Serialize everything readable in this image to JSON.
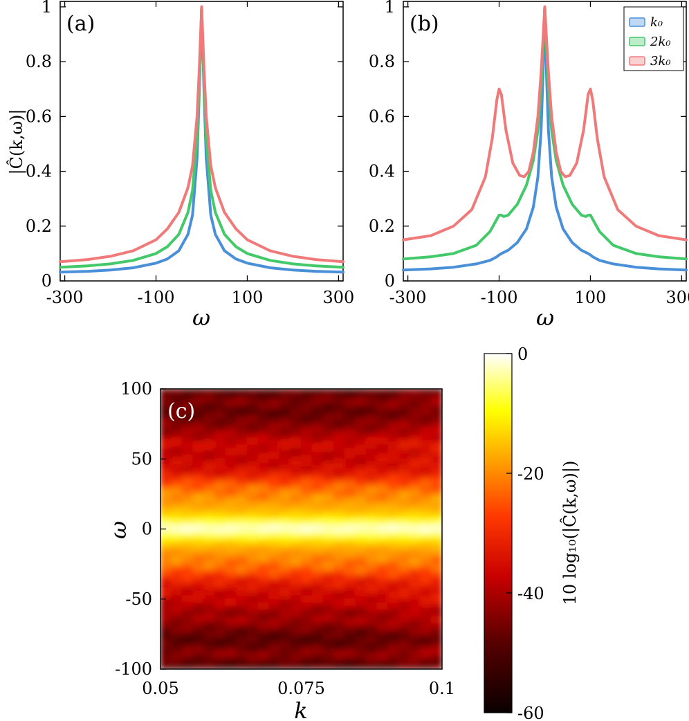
{
  "colors": {
    "k0": "#4a90d9",
    "2k0": "#44c96a",
    "3k0": "#f07a7a"
  },
  "chart_data": [
    {
      "type": "line",
      "panel_label": "(a)",
      "xlabel": "ω",
      "ylabel": "|Ĉ(k,ω)|",
      "xlim": [
        -310,
        310
      ],
      "ylim": [
        0,
        1.02
      ],
      "x_ticks": [
        "-300",
        "-100",
        "100",
        "300"
      ],
      "x_tick_values": [
        -300,
        -100,
        100,
        300
      ],
      "y_ticks": [
        "0",
        "0.2",
        "0.4",
        "0.6",
        "0.8",
        "1"
      ],
      "y_tick_values": [
        0,
        0.2,
        0.4,
        0.6,
        0.8,
        1
      ],
      "legend": null,
      "series": [
        {
          "key": "k0",
          "x": [
            -310,
            -250,
            -200,
            -150,
            -100,
            -75,
            -50,
            -30,
            -20,
            -10,
            -5,
            0,
            5,
            10,
            20,
            30,
            50,
            75,
            100,
            150,
            200,
            250,
            310
          ],
          "values": [
            0.032,
            0.035,
            0.04,
            0.048,
            0.065,
            0.08,
            0.11,
            0.17,
            0.24,
            0.45,
            0.7,
            1.0,
            0.7,
            0.45,
            0.24,
            0.17,
            0.11,
            0.08,
            0.065,
            0.048,
            0.04,
            0.035,
            0.032
          ]
        },
        {
          "key": "2k0",
          "x": [
            -310,
            -250,
            -200,
            -150,
            -100,
            -75,
            -50,
            -30,
            -20,
            -10,
            -5,
            0,
            5,
            10,
            20,
            30,
            50,
            75,
            100,
            150,
            200,
            250,
            310
          ],
          "values": [
            0.05,
            0.055,
            0.062,
            0.075,
            0.1,
            0.125,
            0.17,
            0.25,
            0.33,
            0.52,
            0.73,
            1.0,
            0.73,
            0.52,
            0.33,
            0.25,
            0.17,
            0.125,
            0.1,
            0.075,
            0.062,
            0.055,
            0.05
          ]
        },
        {
          "key": "3k0",
          "x": [
            -310,
            -250,
            -200,
            -150,
            -100,
            -75,
            -50,
            -30,
            -20,
            -10,
            -5,
            0,
            5,
            10,
            20,
            30,
            50,
            75,
            100,
            150,
            200,
            250,
            310
          ],
          "values": [
            0.07,
            0.078,
            0.09,
            0.11,
            0.15,
            0.19,
            0.25,
            0.34,
            0.42,
            0.6,
            0.78,
            1.0,
            0.78,
            0.6,
            0.42,
            0.34,
            0.25,
            0.19,
            0.15,
            0.11,
            0.09,
            0.078,
            0.07
          ]
        }
      ]
    },
    {
      "type": "line",
      "panel_label": "(b)",
      "xlabel": "ω",
      "ylabel": "",
      "xlim": [
        -310,
        310
      ],
      "ylim": [
        0,
        1.02
      ],
      "x_ticks": [
        "-300",
        "-100",
        "100",
        "300"
      ],
      "x_tick_values": [
        -300,
        -100,
        100,
        300
      ],
      "y_ticks": [
        "0",
        "0.2",
        "0.4",
        "0.6",
        "0.8",
        "1"
      ],
      "y_tick_values": [
        0,
        0.2,
        0.4,
        0.6,
        0.8,
        1
      ],
      "legend": {
        "location": "top-right",
        "labels": [
          "k₀",
          "2k₀",
          "3k₀"
        ]
      },
      "series": [
        {
          "key": "k0",
          "x": [
            -310,
            -250,
            -200,
            -150,
            -120,
            -105,
            -100,
            -95,
            -80,
            -60,
            -40,
            -25,
            -15,
            -8,
            -4,
            0,
            4,
            8,
            15,
            25,
            40,
            60,
            80,
            95,
            100,
            105,
            120,
            150,
            200,
            250,
            310
          ],
          "values": [
            0.04,
            0.044,
            0.05,
            0.062,
            0.075,
            0.088,
            0.095,
            0.1,
            0.112,
            0.14,
            0.19,
            0.27,
            0.38,
            0.55,
            0.75,
            1.0,
            0.75,
            0.55,
            0.38,
            0.27,
            0.19,
            0.14,
            0.112,
            0.1,
            0.095,
            0.088,
            0.075,
            0.062,
            0.05,
            0.044,
            0.04
          ]
        },
        {
          "key": "2k0",
          "x": [
            -310,
            -250,
            -200,
            -150,
            -120,
            -105,
            -100,
            -95,
            -90,
            -80,
            -60,
            -40,
            -25,
            -15,
            -8,
            -4,
            0,
            4,
            8,
            15,
            25,
            40,
            60,
            80,
            90,
            95,
            100,
            105,
            120,
            150,
            200,
            250,
            310
          ],
          "values": [
            0.08,
            0.088,
            0.1,
            0.13,
            0.18,
            0.225,
            0.24,
            0.24,
            0.235,
            0.24,
            0.28,
            0.35,
            0.44,
            0.55,
            0.7,
            0.85,
            1.0,
            0.85,
            0.7,
            0.55,
            0.44,
            0.35,
            0.28,
            0.24,
            0.235,
            0.24,
            0.24,
            0.225,
            0.18,
            0.13,
            0.1,
            0.088,
            0.08
          ]
        },
        {
          "key": "3k0",
          "x": [
            -310,
            -250,
            -200,
            -160,
            -130,
            -115,
            -105,
            -100,
            -95,
            -85,
            -70,
            -55,
            -45,
            -35,
            -25,
            -15,
            -8,
            -4,
            0,
            4,
            8,
            15,
            25,
            35,
            45,
            55,
            70,
            85,
            95,
            100,
            105,
            115,
            130,
            160,
            200,
            250,
            310
          ],
          "values": [
            0.15,
            0.165,
            0.2,
            0.26,
            0.38,
            0.52,
            0.66,
            0.7,
            0.68,
            0.55,
            0.43,
            0.385,
            0.38,
            0.4,
            0.47,
            0.6,
            0.76,
            0.88,
            1.0,
            0.88,
            0.76,
            0.6,
            0.47,
            0.4,
            0.38,
            0.385,
            0.43,
            0.55,
            0.68,
            0.7,
            0.66,
            0.52,
            0.38,
            0.26,
            0.2,
            0.165,
            0.15
          ]
        }
      ]
    },
    {
      "type": "heatmap",
      "panel_label": "(c)",
      "xlabel": "k",
      "ylabel": "ω",
      "xlim": [
        0.05,
        0.1
      ],
      "ylim": [
        -100,
        100
      ],
      "x_ticks": [
        "0.05",
        "0.075",
        "0.1"
      ],
      "x_tick_values": [
        0.05,
        0.075,
        0.1
      ],
      "y_ticks": [
        "100",
        "50",
        "0",
        "-50",
        "-100"
      ],
      "y_tick_values": [
        100,
        50,
        0,
        -50,
        -100
      ],
      "colorbar": {
        "label": "10 log₁₀(|Ĉ(k,ω)|)",
        "range": [
          -60,
          0
        ],
        "ticks": [
          "0",
          "-20",
          "-40",
          "-60"
        ],
        "tick_values": [
          0,
          -20,
          -40,
          -60
        ],
        "colormap": "hot"
      },
      "omega_profile": {
        "omega": [
          -100,
          -95,
          -90,
          -85,
          -80,
          -75,
          -70,
          -65,
          -60,
          -55,
          -50,
          -45,
          -40,
          -35,
          -30,
          -25,
          -20,
          -15,
          -10,
          -5,
          0,
          5,
          10,
          15,
          20,
          25,
          30,
          35,
          40,
          45,
          50,
          55,
          60,
          65,
          70,
          75,
          80,
          85,
          90,
          95,
          100
        ],
        "db": [
          -50,
          -48,
          -42,
          -46,
          -49,
          -47,
          -44,
          -40,
          -43,
          -38,
          -37,
          -36,
          -33,
          -30,
          -24,
          -22,
          -20,
          -18,
          -14,
          -8,
          0,
          -8,
          -14,
          -17,
          -19,
          -21,
          -23,
          -28,
          -34,
          -36,
          -37,
          -38,
          -35,
          -39,
          -42,
          -44,
          -46,
          -48,
          -43,
          -47,
          -50
        ]
      }
    }
  ]
}
